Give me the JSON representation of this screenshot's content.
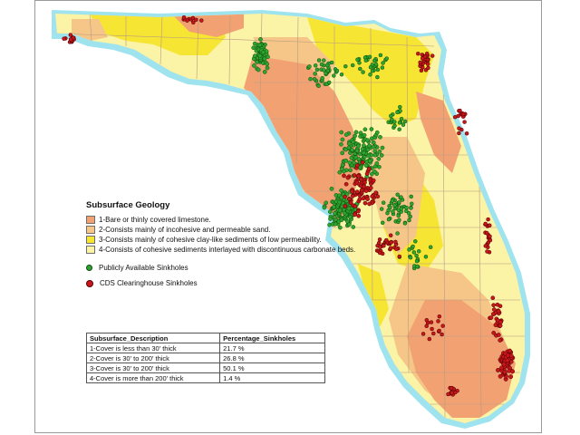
{
  "legend": {
    "title": "Subsurface Geology",
    "items": [
      {
        "label": "1-Bare or thinly covered limestone.",
        "color": "#f2a272"
      },
      {
        "label": "2-Consists mainly of incohesive and permeable sand.",
        "color": "#f5c687"
      },
      {
        "label": "3-Consists mainly of cohesive clay-like sediments of low permeability.",
        "color": "#f7e534"
      },
      {
        "label": "4-Consists of cohesive sediments interlayed with discontinuous carbonate beds.",
        "color": "#fbf3a6"
      }
    ],
    "symbols": [
      {
        "label": "Publicly Available Sinkholes",
        "color": "#2ea52e",
        "icon": "green-dot-icon"
      },
      {
        "label": "CDS Clearinghouse Sinkholes",
        "color": "#c8161a",
        "icon": "red-dot-icon"
      }
    ]
  },
  "table": {
    "headers": [
      "Subsurface_Description",
      "Percentage_Sinkholes"
    ],
    "rows": [
      [
        "1-Cover is less than 30' thick",
        "21.7 %"
      ],
      [
        "2-Cover is 30' to 200' thick",
        "26.8 %"
      ],
      [
        "3-Cover is 30' to 200' thick",
        "50.1 %"
      ],
      [
        "4-Cover is more than 200' thick",
        "1.4 %"
      ]
    ]
  },
  "colors": {
    "coast": "#9fe3ef",
    "zone1": "#f2a272",
    "zone2": "#f5c687",
    "zone3": "#f7e534",
    "zone4": "#fbf3a6",
    "county_lines": "#b89a80"
  }
}
